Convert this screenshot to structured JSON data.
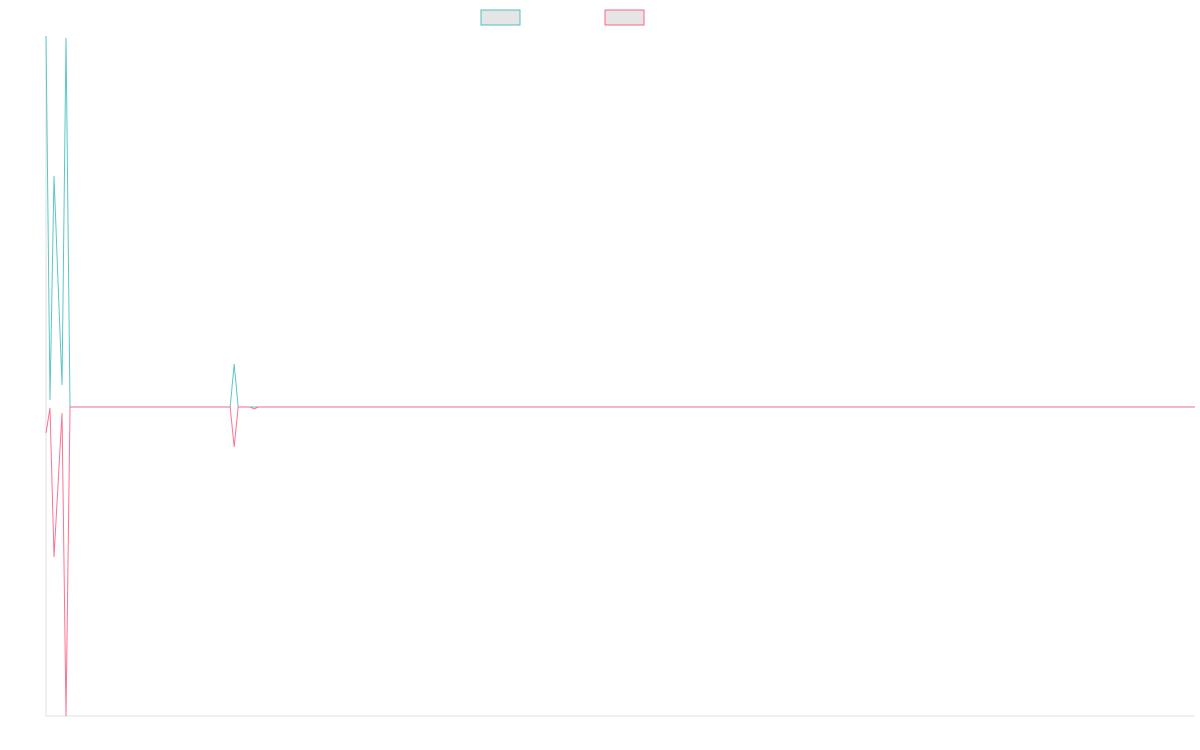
{
  "chart_data": {
    "type": "line",
    "title": "",
    "xlabel": "",
    "ylabel": "",
    "x_range": [
      0,
      287
    ],
    "ylim": [
      -309,
      371
    ],
    "grid": false,
    "legend": "top",
    "series": [
      {
        "color": "#4bc0c0",
        "points": [
          [
            0,
            371
          ],
          [
            1,
            7
          ],
          [
            2,
            231
          ],
          [
            3,
            126
          ],
          [
            4,
            22
          ],
          [
            5,
            369
          ],
          [
            6,
            0
          ],
          [
            46,
            0
          ],
          [
            47,
            43
          ],
          [
            48,
            0
          ],
          [
            287,
            0
          ]
        ]
      },
      {
        "color": "#ff6384",
        "points": [
          [
            0,
            -26
          ],
          [
            1,
            -1
          ],
          [
            2,
            -150
          ],
          [
            3,
            -78
          ],
          [
            4,
            -6
          ],
          [
            5,
            -309
          ],
          [
            6,
            0
          ],
          [
            46,
            0
          ],
          [
            47,
            -40
          ],
          [
            48,
            0
          ],
          [
            51,
            0
          ],
          [
            52,
            -2
          ],
          [
            53,
            0
          ],
          [
            287,
            0
          ]
        ]
      }
    ]
  }
}
